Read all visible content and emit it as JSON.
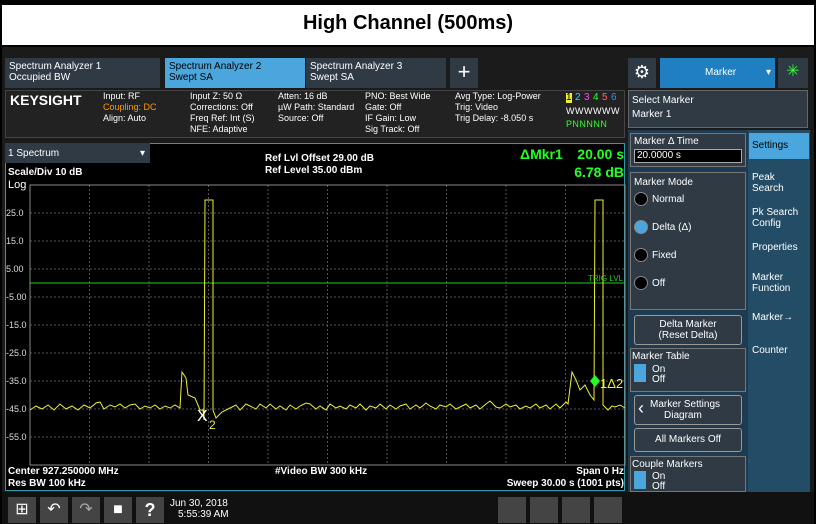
{
  "title": "High Channel (500ms)",
  "tabs": [
    {
      "line1": "Spectrum Analyzer 1",
      "line2": "Occupied BW"
    },
    {
      "line1": "Spectrum Analyzer 2",
      "line2": "Swept SA"
    },
    {
      "line1": "Spectrum Analyzer 3",
      "line2": "Swept SA"
    }
  ],
  "menu_title": "Marker",
  "status": {
    "brand": "KEYSIGHT",
    "col1": [
      "Input: RF",
      "Coupling: DC",
      "Align: Auto"
    ],
    "col2": [
      "Input Z: 50 Ω",
      "Corrections: Off",
      "Freq Ref: Int (S)",
      "NFE: Adaptive"
    ],
    "col3": [
      "Atten: 16 dB",
      "µW Path: Standard",
      "Source: Off"
    ],
    "col4": [
      "PNO: Best Wide",
      "Gate: Off",
      "IF Gain: Low",
      "Sig Track: Off"
    ],
    "col5": [
      "Avg Type: Log-Power",
      "Trig: Video",
      "Trig Delay: -8.050 s"
    ],
    "traces": [
      "1",
      "2",
      "3",
      "4",
      "5",
      "6"
    ],
    "types": "W W W W W W",
    "detectors": "P N N N N N"
  },
  "select_marker": {
    "label": "Select Marker",
    "value": "Marker 1"
  },
  "plot": {
    "window": "1 Spectrum",
    "scale": "Scale/Div 10 dB",
    "log": "Log",
    "ref_offset": "Ref Lvl Offset 29.00 dB",
    "ref_level": "Ref Level 35.00 dBm",
    "delta_marker": "ΔMkr1",
    "delta_x": "20.00 s",
    "delta_y": "6.78 dB",
    "y_labels": [
      "25.0",
      "15.0",
      "5.00",
      "-5.00",
      "-15.0",
      "-25.0",
      "-35.0",
      "-45.0",
      "-55.0"
    ],
    "trig_label": "TRIG LVL",
    "marker2": "X",
    "marker2_sub": "2",
    "marker1": "1Δ2",
    "center": "Center 927.250000 MHz",
    "res_bw": "Res BW 100 kHz",
    "video_bw": "#Video BW 300 kHz",
    "span": "Span 0 Hz",
    "sweep": "Sweep 30.00 s (1001 pts)"
  },
  "panel": {
    "delta_time_label": "Marker Δ Time",
    "delta_time_value": "20.0000 s",
    "mode_label": "Marker Mode",
    "modes": [
      "Normal",
      "Delta (Δ)",
      "Fixed",
      "Off"
    ],
    "reset_delta": [
      "Delta Marker",
      "(Reset Delta)"
    ],
    "table_label": "Marker Table",
    "on": "On",
    "off": "Off",
    "settings_diagram": [
      "Marker Settings",
      "Diagram"
    ],
    "all_off": "All Markers Off",
    "couple_label": "Couple Markers"
  },
  "side_tabs": [
    "Settings",
    "Peak Search",
    "Pk Search Config",
    "Properties",
    "Marker Function",
    "Marker→",
    "Counter"
  ],
  "taskbar": {
    "date": "Jun 30, 2018",
    "time": "5:55:39 AM"
  }
}
